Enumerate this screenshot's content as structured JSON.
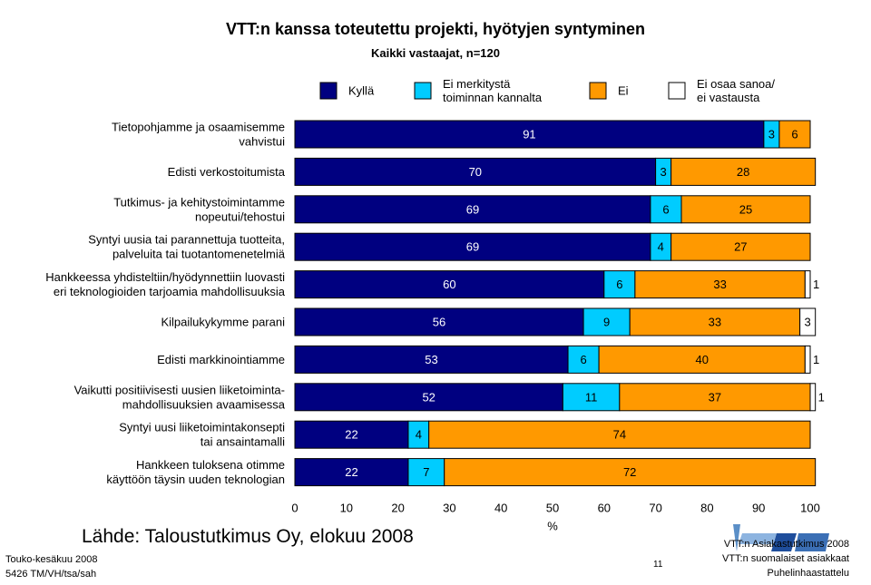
{
  "header": {
    "title": "VTT:n kanssa toteutettu projekti, hyötyjen syntyminen",
    "subtitle": "Kaikki vastaajat, n=120"
  },
  "chart_data": {
    "type": "bar",
    "orientation": "horizontal-stacked-100",
    "categories": [
      [
        "Tietopohjamme ja osaamisemme",
        "vahvistui"
      ],
      [
        "Edisti verkostoitumista"
      ],
      [
        "Tutkimus- ja kehitystoimintamme",
        "nopeutui/tehostui"
      ],
      [
        "Syntyi uusia tai parannettuja tuotteita,",
        "palveluita tai tuotantomenetelmiä"
      ],
      [
        "Hankkeessa yhdisteltiin/hyödynnettiin luovasti",
        "eri teknologioiden tarjoamia mahdollisuuksia"
      ],
      [
        "Kilpailukykymme parani"
      ],
      [
        "Edisti markkinointiamme"
      ],
      [
        "Vaikutti positiivisesti uusien liiketoiminta-",
        "mahdollisuuksien avaamisessa"
      ],
      [
        "Syntyi uusi liiketoimintakonsepti",
        "tai ansaintamalli"
      ],
      [
        "Hankkeen tuloksena otimme",
        "käyttöön täysin uuden teknologian"
      ]
    ],
    "series": [
      {
        "name": [
          "Kyllä"
        ],
        "color": "#000080",
        "label_color": "#ffffff",
        "values": [
          91,
          70,
          69,
          69,
          60,
          56,
          53,
          52,
          22,
          22
        ]
      },
      {
        "name": [
          "Ei merkitystä",
          "toiminnan kannalta"
        ],
        "color": "#00ccff",
        "label_color": "#000000",
        "values": [
          3,
          3,
          6,
          4,
          6,
          9,
          6,
          11,
          4,
          7
        ]
      },
      {
        "name": [
          "Ei"
        ],
        "color": "#ff9900",
        "label_color": "#000000",
        "values": [
          6,
          28,
          25,
          27,
          33,
          33,
          40,
          37,
          74,
          72
        ]
      },
      {
        "name": [
          "Ei osaa sanoa/",
          "ei vastausta"
        ],
        "color": "#ffffff",
        "label_color": "#000000",
        "values": [
          0,
          0,
          0,
          0,
          1,
          3,
          1,
          1,
          0,
          0
        ]
      }
    ],
    "xlim": [
      0,
      100
    ],
    "xticks": [
      0,
      10,
      20,
      30,
      40,
      50,
      60,
      70,
      80,
      90,
      100
    ],
    "xlabel": "%",
    "legend_position": "top"
  },
  "footer": {
    "source": "Lähde: Taloustutkimus Oy, elokuu 2008",
    "date": "Touko-kesäkuu 2008",
    "code": "5426 TM/VH/tsa/sah",
    "page_number": "11",
    "study_line1": "VTT:n Asiakastutkimus 2008",
    "study_line2": "VTT:n suomalaiset asiakkaat",
    "study_line3": "Puhelinhaastattelu"
  }
}
